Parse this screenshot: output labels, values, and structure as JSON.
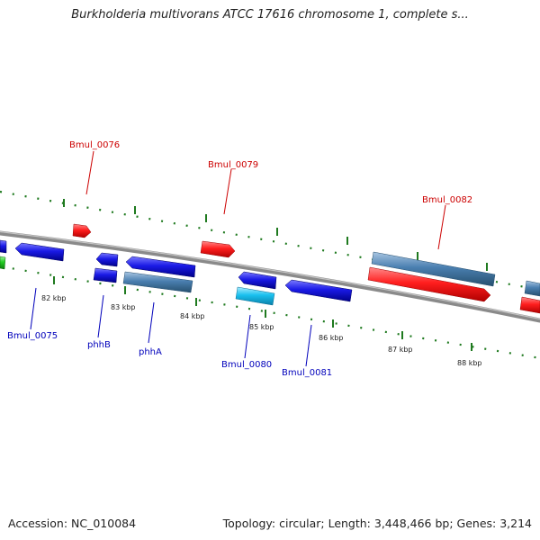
{
  "title": "Burkholderia multivorans ATCC 17616 chromosome 1, complete s...",
  "accession": "Accession: NC_010084",
  "stats": "Topology: circular; Length: 3,448,466 bp; Genes: 3,214",
  "kbp_labels": [
    "82 kbp",
    "83 kbp",
    "84 kbp",
    "85 kbp",
    "86 kbp",
    "87 kbp",
    "88 kbp"
  ],
  "gene_labels_top": [
    "Bmul_0076",
    "Bmul_0079",
    "Bmul_0082"
  ],
  "gene_labels_bottom": [
    "Bmul_0075",
    "phhB",
    "phhA",
    "Bmul_0080",
    "Bmul_0081"
  ],
  "colors": {
    "forward_gene": "#e21a1a",
    "reverse_gene": "#1a1acc",
    "cds_steelblue": "#4a7fb0",
    "cds_cyan": "#19c0ee",
    "other_green": "#22cc22",
    "backbone": "#8a8a8a",
    "ticks": "#1f7a1f",
    "label_top": "#cc0000",
    "label_bottom": "#0000bb"
  }
}
